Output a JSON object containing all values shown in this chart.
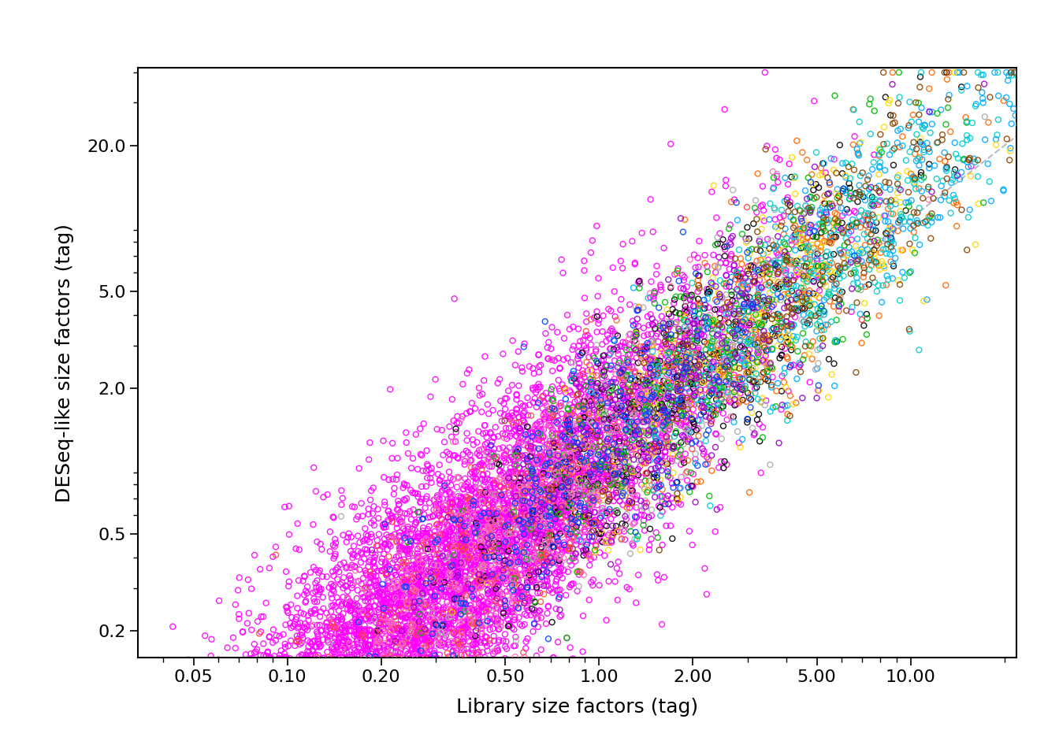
{
  "title": "",
  "xlabel": "Library size factors (tag)",
  "ylabel": "DESeq-like size factors (tag)",
  "x_ticks": [
    0.05,
    0.1,
    0.2,
    0.5,
    1.0,
    2.0,
    5.0,
    10.0
  ],
  "x_tick_labels": [
    "0.05",
    "0.10",
    "0.20",
    "0.50",
    "1.00",
    "2.00",
    "5.00",
    "10.00"
  ],
  "y_ticks": [
    0.2,
    0.5,
    2.0,
    5.0,
    20.0
  ],
  "y_tick_labels": [
    "0.2",
    "0.5",
    "2.0",
    "5.0",
    "20.0"
  ],
  "n_points": 7000,
  "cluster_colors": [
    "#FF00FF",
    "#000000",
    "#FF6600",
    "#00AAFF",
    "#FFD700",
    "#AAAAAA",
    "#FF4444",
    "#00BB00",
    "#FF69B4",
    "#00CCCC",
    "#9900CC",
    "#884400",
    "#0044FF"
  ],
  "background_color": "#FFFFFF",
  "dashed_line_color": "#BBBBBB",
  "marker_size": 5,
  "marker_linewidth": 1.0,
  "figure_facecolor": "#FFFFFF",
  "xlim": [
    0.033,
    22.0
  ],
  "ylim": [
    0.155,
    42.0
  ],
  "x_log_min": -1.48,
  "x_log_max": 1.34,
  "y_log_min": -0.81,
  "y_log_max": 1.62
}
